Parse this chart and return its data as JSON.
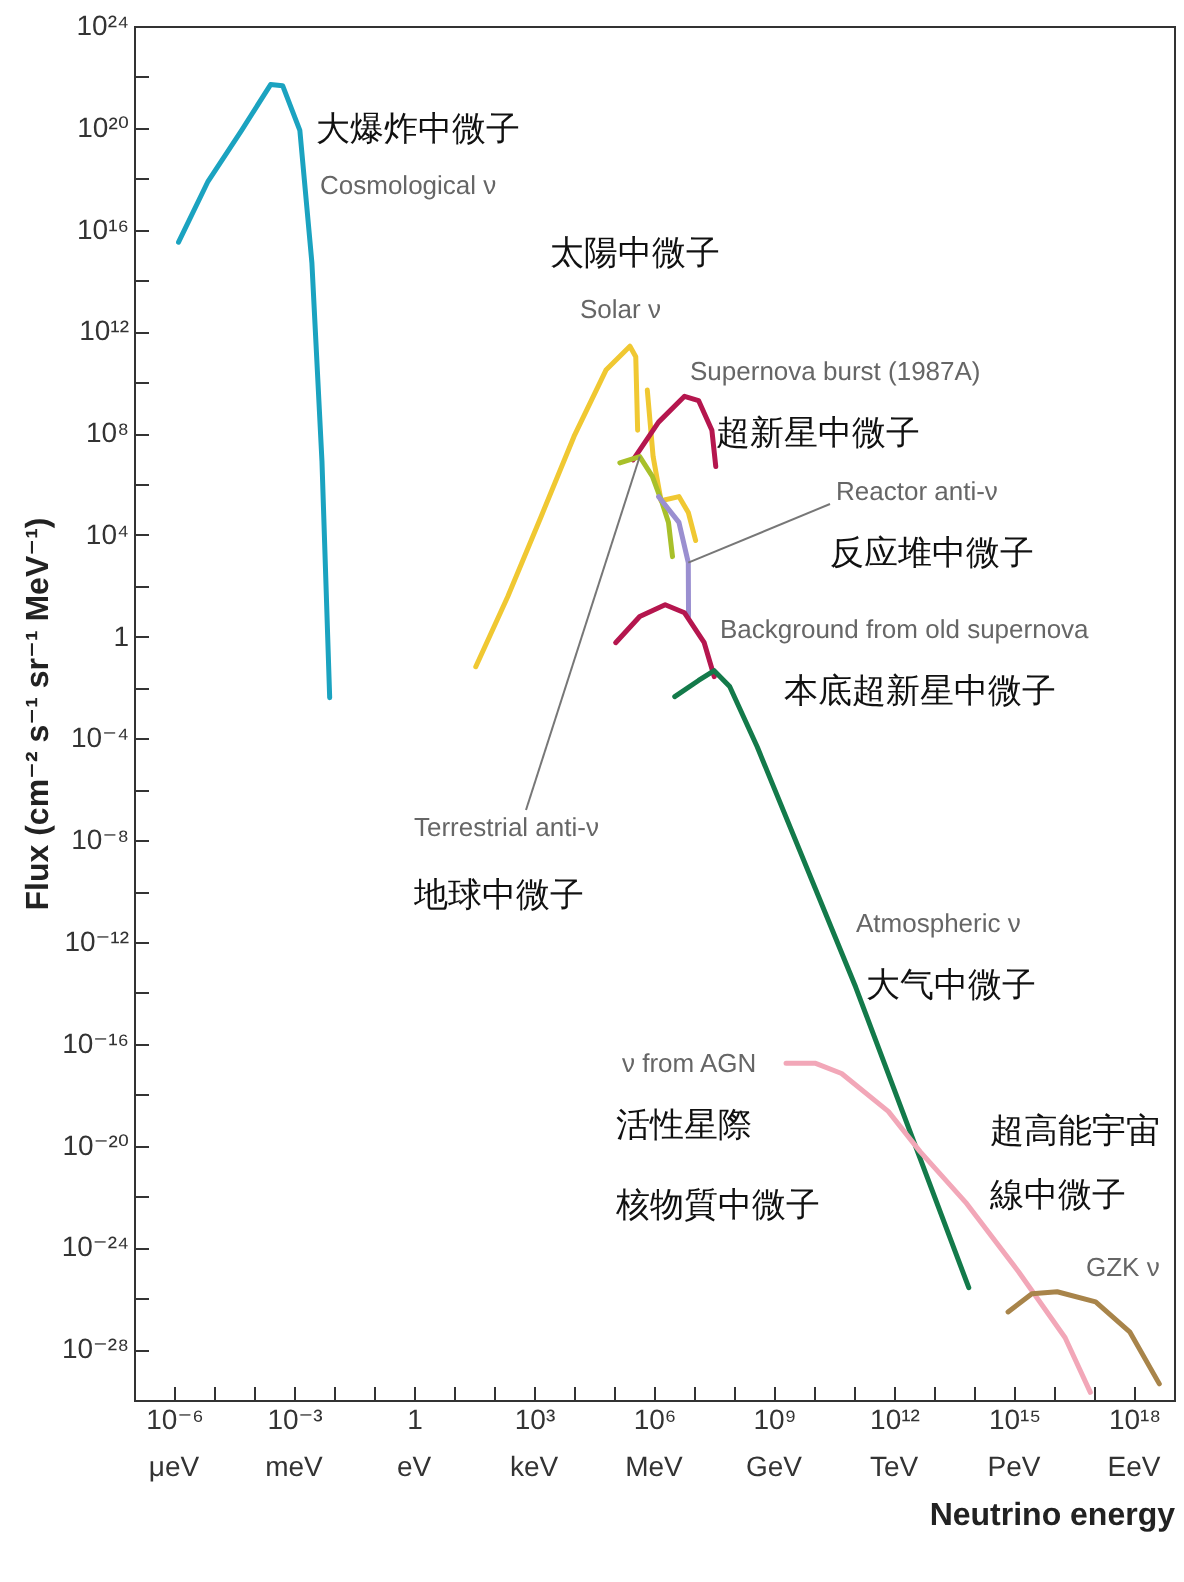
{
  "chart_data": {
    "type": "line",
    "log": "xy",
    "xlabel": "Neutrino energy",
    "ylabel": "Flux (cm⁻² s⁻¹ sr⁻¹ MeV⁻¹)",
    "xlim": [
      1e-07,
      1e+19
    ],
    "ylim": [
      1e-30,
      1e+24
    ],
    "xticks": [
      {
        "value": 1e-07,
        "label": null
      },
      {
        "value": 1e-06,
        "label": "10⁻⁶"
      },
      {
        "value": 1e-05,
        "label": null
      },
      {
        "value": 0.0001,
        "label": null
      },
      {
        "value": 0.001,
        "label": "10⁻³"
      },
      {
        "value": 0.01,
        "label": null
      },
      {
        "value": 0.1,
        "label": null
      },
      1,
      {
        "value": 10,
        "label": null
      },
      {
        "value": 100,
        "label": null
      },
      {
        "value": 1000.0,
        "label": "10³"
      },
      {
        "value": 10000.0,
        "label": null
      },
      {
        "value": 100000.0,
        "label": null
      },
      {
        "value": 1000000.0,
        "label": "10⁶"
      },
      {
        "value": 10000000.0,
        "label": null
      },
      {
        "value": 100000000.0,
        "label": null
      },
      {
        "value": 1000000000.0,
        "label": "10⁹"
      },
      {
        "value": 10000000000.0,
        "label": null
      },
      {
        "value": 100000000000.0,
        "label": null
      },
      {
        "value": 1000000000000.0,
        "label": "10¹²"
      },
      {
        "value": 10000000000000.0,
        "label": null
      },
      {
        "value": 100000000000000.0,
        "label": null
      },
      {
        "value": 1000000000000000.0,
        "label": "10¹⁵"
      },
      {
        "value": 1e+16,
        "label": null
      },
      {
        "value": 1e+17,
        "label": null
      },
      {
        "value": 1e+18,
        "label": "10¹⁸"
      }
    ],
    "yticks": [
      {
        "value": 1e+24,
        "label": "10²⁴"
      },
      {
        "value": 1e+22,
        "label": null
      },
      {
        "value": 1e+20,
        "label": "10²⁰"
      },
      {
        "value": 1e+18,
        "label": null
      },
      {
        "value": 1e+16,
        "label": "10¹⁶"
      },
      {
        "value": 100000000000000.0,
        "label": null
      },
      {
        "value": 1000000000000.0,
        "label": "10¹²"
      },
      {
        "value": 10000000000.0,
        "label": null
      },
      {
        "value": 100000000.0,
        "label": "10⁸"
      },
      {
        "value": 1000000.0,
        "label": null
      },
      {
        "value": 10000.0,
        "label": "10⁴"
      },
      {
        "value": 100,
        "label": null
      },
      1,
      {
        "value": 0.01,
        "label": null
      },
      {
        "value": 0.0001,
        "label": "10⁻⁴"
      },
      {
        "value": 1e-06,
        "label": null
      },
      {
        "value": 1e-08,
        "label": "10⁻⁸"
      },
      {
        "value": 1e-10,
        "label": null
      },
      {
        "value": 1e-12,
        "label": "10⁻¹²"
      },
      {
        "value": 1e-14,
        "label": null
      },
      {
        "value": 1e-16,
        "label": "10⁻¹⁶"
      },
      {
        "value": 1e-18,
        "label": null
      },
      {
        "value": 1e-20,
        "label": "10⁻²⁰"
      },
      {
        "value": 1e-22,
        "label": null
      },
      {
        "value": 1e-24,
        "label": "10⁻²⁴"
      },
      {
        "value": 1e-26,
        "label": null
      },
      {
        "value": 1e-28,
        "label": "10⁻²⁸"
      }
    ],
    "series": [
      {
        "color": "#1ba3c0",
        "x": [
          1.3e-06,
          7.1e-06,
          4.9e-05,
          0.00026,
          0.00052,
          0.0014,
          0.0028,
          0.005,
          0.0078
        ],
        "values": [
          3200000000000000.0,
          7.9e+17,
          7.9e+19,
          5e+21,
          4.5e+21,
          7.9e+19,
          500000000000000.0,
          7900000.0,
          0.004
        ]
      },
      {
        "color": "#f0c832",
        "x": [
          35,
          220,
          1500.0,
          10000.0,
          63000.0,
          250000.0,
          350000.0,
          390000.0
        ],
        "values": [
          0.066,
          37,
          52000.0,
          74000000.0,
          30000000000.0,
          260000000000.0,
          100000000000.0,
          130000000.0
        ]
      },
      {
        "color": "#f0c832",
        "x": [
          680000.0,
          950000.0,
          1500000.0,
          4200000.0,
          7200000.0,
          11000000.0
        ],
        "values": [
          4900000000.0,
          12000000.0,
          220000.0,
          320000.0,
          76000.0,
          6000.0
        ]
      },
      {
        "color": "#b5164e",
        "x": [
          300000.0,
          1300000.0,
          5800000.0,
          13000000.0,
          28000000.0,
          35000000.0
        ],
        "values": [
          8900000.0,
          270000000.0,
          2800000000.0,
          1900000000.0,
          130000000.0,
          4900000.0
        ]
      },
      {
        "color": "#a8c02a",
        "x": [
          140000.0,
          440000.0,
          910000.0,
          1600000.0,
          2300000.0,
          2900000.0
        ],
        "values": [
          6800000.0,
          12000000.0,
          2000000.0,
          180000.0,
          31000.0,
          1400.0
        ]
      },
      {
        "color": "#9a8fd0",
        "x": [
          1300000.0,
          4200000.0,
          7200000.0,
          7300000.0
        ],
        "values": [
          320000.0,
          31000.0,
          810,
          6.2
        ]
      },
      {
        "color": "#b5164e",
        "x": [
          110000.0,
          440000.0,
          1900000.0,
          5800000.0,
          18000000.0,
          32000000.0
        ],
        "values": [
          0.58,
          6.2,
          18,
          8.7,
          0.58,
          0.027
        ]
      },
      {
        "color": "#137a4a",
        "x": [
          3300000.0,
          13000000.0,
          32000000.0,
          78000000.0,
          380000000.0,
          110000000000.0,
          74000000000000.0
        ],
        "values": [
          0.0044,
          0.019,
          0.046,
          0.011,
          4.7e-05,
          1.7e-14,
          2.6e-26
        ]
      },
      {
        "color": "#f2a7b8",
        "x": [
          2000000000.0,
          11000000000.0,
          49000000000.0,
          720000000000.0,
          4500000000000.0,
          66000000000000.0,
          1300000000000000.0,
          1.9e+16,
          8.1e+16
        ],
        "values": [
          1.7e-17,
          1.7e-17,
          6.8e-18,
          2.2e-19,
          5.8e-21,
          5.2e-23,
          1.1e-25,
          2.8e-28,
          2e-30
        ]
      },
      {
        "color": "#a8844a",
        "x": [
          710000000000000.0,
          2800000000000000.0,
          1.2e+16,
          1.1e+17,
          7.8e+17,
          4.3e+18
        ],
        "values": [
          2.9e-27,
          1.5e-26,
          1.8e-26,
          7.2e-27,
          4.8e-28,
          4.3e-30
        ]
      }
    ],
    "annotations": [
      "大爆炸中微子",
      "Cosmological ν",
      "太陽中微子",
      "Solar ν",
      "Supernova burst (1987A)",
      "超新星中微子",
      {
        "text": "Reactor anti-ν",
        "x": 7200000.0,
        "y": 810
      },
      "反应堆中微子",
      "Background from old supernova",
      "本底超新星中微子",
      {
        "text": "Terrestrial anti-ν",
        "x": 440000.0,
        "y": 12000000.0
      },
      "地球中微子",
      "Atmospheric ν",
      "大气中微子",
      "ν from AGN",
      "活性星際",
      "核物質中微子",
      "超高能宇宙",
      "線中微子",
      "GZK ν",
      "μeV",
      "meV",
      "eV",
      "keV",
      "MeV",
      "GeV",
      "TeV",
      "PeV",
      "EeV"
    ]
  }
}
